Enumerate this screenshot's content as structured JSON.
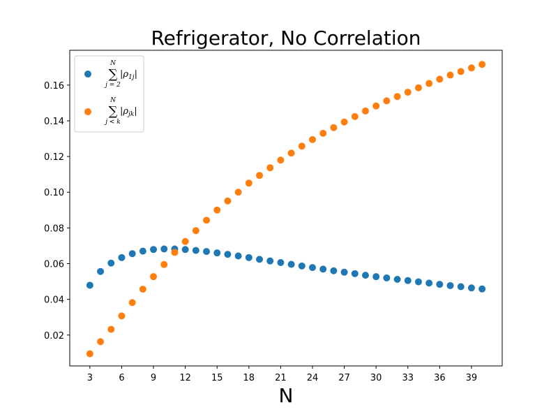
{
  "chart_data": {
    "type": "scatter",
    "title": "Refrigerator, No Correlation",
    "xlabel": "N",
    "ylabel": "",
    "xlim": [
      1.1,
      41.9
    ],
    "ylim": [
      0.0027,
      0.1795
    ],
    "xticks": [
      3,
      6,
      9,
      12,
      15,
      18,
      21,
      24,
      27,
      30,
      33,
      36,
      39
    ],
    "yticks": [
      0.02,
      0.04,
      0.06,
      0.08,
      0.1,
      0.12,
      0.14,
      0.16
    ],
    "ytick_labels": [
      "0.02",
      "0.04",
      "0.06",
      "0.08",
      "0.10",
      "0.12",
      "0.14",
      "0.16"
    ],
    "grid": false,
    "legend_position": "top-left",
    "x": [
      3,
      4,
      5,
      6,
      7,
      8,
      9,
      10,
      11,
      12,
      13,
      14,
      15,
      16,
      17,
      18,
      19,
      20,
      21,
      22,
      23,
      24,
      25,
      26,
      27,
      28,
      29,
      30,
      31,
      32,
      33,
      34,
      35,
      36,
      37,
      38,
      39,
      40
    ],
    "series": [
      {
        "legend": {
          "sum_top": "N",
          "sum_bottom": "j = 2",
          "body": "|ρ",
          "subscript": "1j",
          "close": "|"
        },
        "color": "#1f77b4",
        "values": [
          0.0479,
          0.0556,
          0.0603,
          0.0634,
          0.0656,
          0.067,
          0.0679,
          0.0682,
          0.0682,
          0.0679,
          0.0674,
          0.0668,
          0.066,
          0.0652,
          0.0643,
          0.0634,
          0.0624,
          0.0615,
          0.0606,
          0.0596,
          0.0587,
          0.0578,
          0.0569,
          0.056,
          0.0552,
          0.0544,
          0.0535,
          0.0527,
          0.052,
          0.0512,
          0.0505,
          0.0498,
          0.0491,
          0.0484,
          0.0477,
          0.0471,
          0.0464,
          0.0458
        ]
      },
      {
        "legend": {
          "sum_top": "N",
          "sum_bottom": "j < k",
          "body": "|ρ",
          "subscript": "jk",
          "close": "|"
        },
        "color": "#ff7f0e",
        "values": [
          0.0095,
          0.0163,
          0.0232,
          0.0307,
          0.0382,
          0.0457,
          0.0527,
          0.0595,
          0.0663,
          0.0724,
          0.0785,
          0.0843,
          0.09,
          0.0951,
          0.1,
          0.1051,
          0.1094,
          0.1137,
          0.118,
          0.1219,
          0.1258,
          0.1295,
          0.133,
          0.1362,
          0.1393,
          0.1424,
          0.1455,
          0.1483,
          0.1512,
          0.1536,
          0.156,
          0.1585,
          0.1609,
          0.1633,
          0.1656,
          0.1676,
          0.1696,
          0.1716
        ]
      }
    ]
  }
}
